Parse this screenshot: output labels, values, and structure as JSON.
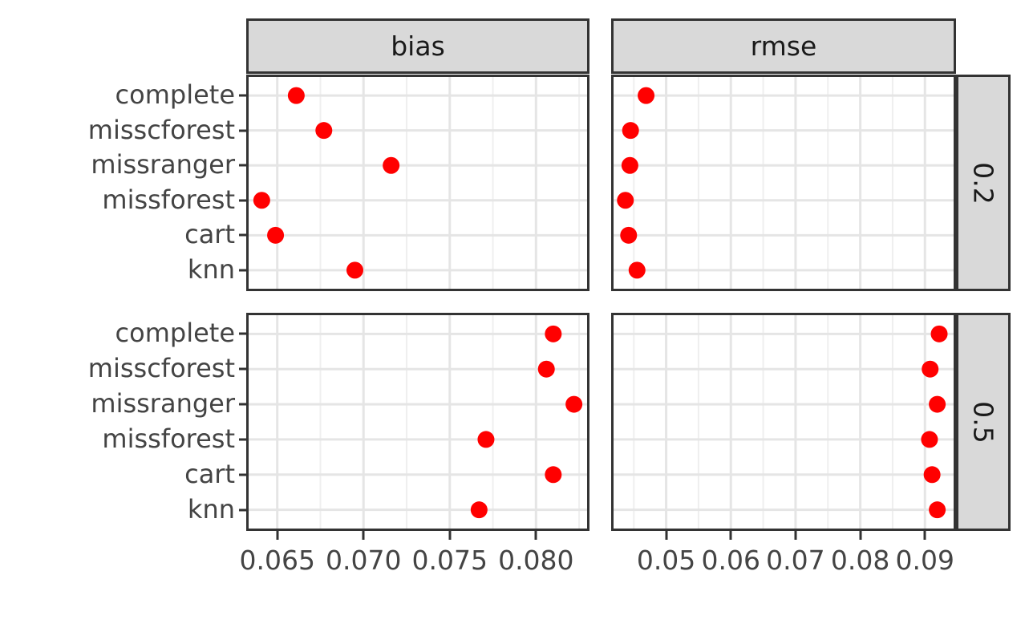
{
  "chart_data": {
    "type": "scatter",
    "title": "",
    "facet_cols": [
      "bias",
      "rmse"
    ],
    "facet_rows": [
      "0.2",
      "0.5"
    ],
    "categories": [
      "complete",
      "misscforest",
      "missranger",
      "missforest",
      "cart",
      "knn"
    ],
    "point_color": "#ff0000",
    "legend": "none",
    "grid": "on",
    "panels": [
      {
        "col": "bias",
        "row": "0.2",
        "values": [
          0.0661,
          0.0677,
          0.0716,
          0.0641,
          0.0649,
          0.0695
        ]
      },
      {
        "col": "rmse",
        "row": "0.2",
        "values": [
          0.0469,
          0.0445,
          0.0444,
          0.0437,
          0.0442,
          0.0455
        ]
      },
      {
        "col": "bias",
        "row": "0.5",
        "values": [
          0.081,
          0.0806,
          0.0822,
          0.0771,
          0.081,
          0.0767
        ]
      },
      {
        "col": "rmse",
        "row": "0.5",
        "values": [
          0.0922,
          0.0908,
          0.0919,
          0.0907,
          0.0911,
          0.0919
        ]
      }
    ],
    "x_axes": {
      "bias": {
        "range": [
          0.0632,
          0.0831
        ],
        "ticks": [
          0.065,
          0.07,
          0.075,
          0.08
        ],
        "tick_labels": [
          "0.065",
          "0.070",
          "0.075",
          "0.080"
        ],
        "minor_ticks": [
          0.0675,
          0.0725,
          0.0775,
          0.0825
        ]
      },
      "rmse": {
        "range": [
          0.0415,
          0.0948
        ],
        "ticks": [
          0.05,
          0.06,
          0.07,
          0.08,
          0.09
        ],
        "tick_labels": [
          "0.05",
          "0.06",
          "0.07",
          "0.08",
          "0.09"
        ],
        "minor_ticks": [
          0.045,
          0.055,
          0.065,
          0.075,
          0.085
        ]
      }
    },
    "colors": {
      "point": "#ff0000",
      "strip_background": "#d9d9d9",
      "panel_border": "#333333",
      "grid_major": "#e5e5e5",
      "grid_minor": "#efefef",
      "axis_text": "#444444",
      "strip_text": "#1a1a1a",
      "tick_mark": "#333333"
    }
  }
}
